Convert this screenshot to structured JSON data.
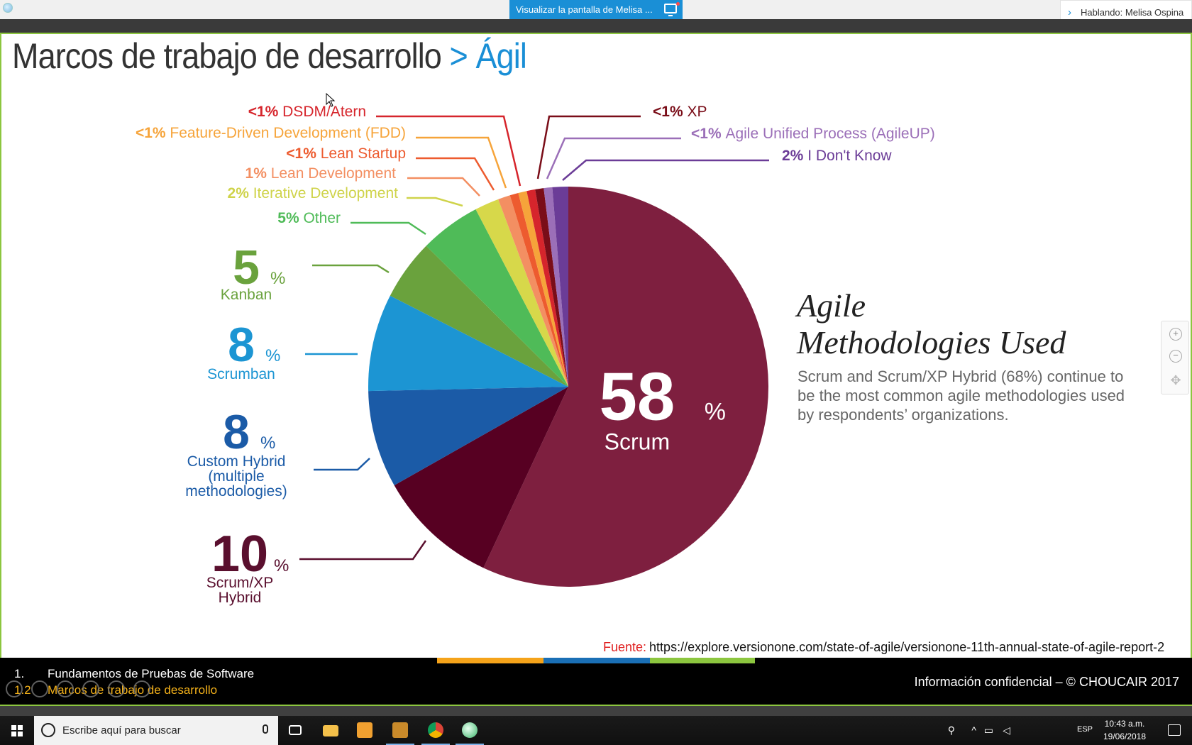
{
  "viewer": {
    "share_banner": "Visualizar la pantalla de Melisa ...",
    "speaking": "Hablando: Melisa Ospina"
  },
  "slide": {
    "title_main": "Marcos de trabajo de desarrollo",
    "title_accent": "> Ágil",
    "agile_title_line1": "Agile",
    "agile_title_line2": "Methodologies Used",
    "agile_desc": "Scrum and Scrum/XP Hybrid (68%) continue to be the most common agile methodologies used by respondents’ organizations.",
    "source_label": "Fuente:",
    "source_url": "https://explore.versionone.com/state-of-agile/versionone-11th-annual-state-of-agile-report-2"
  },
  "footer": {
    "num1": "1.",
    "line1": "Fundamentos de Pruebas de Software",
    "num2": "1.2",
    "line2": "Marcos de trabajo de desarrollo",
    "right": "Información confidencial – © CHOUCAIR 2017",
    "bar_colors": [
      "#f5a31a",
      "#1a6fb5",
      "#8cc63f"
    ]
  },
  "chart_data": {
    "type": "pie",
    "start": "12 o'clock, clockwise",
    "slices": [
      {
        "pct": "58",
        "label": "Scrum",
        "value": 58,
        "color": "#7e1f3f",
        "big": true
      },
      {
        "pct": "10",
        "label": "Scrum/XP Hybrid",
        "value": 10,
        "color": "#570022"
      },
      {
        "pct": "8",
        "label": "Custom Hybrid (multiple methodologies)",
        "value": 8,
        "color": "#1b5ba7"
      },
      {
        "pct": "8",
        "label": "Scrumban",
        "value": 8,
        "color": "#1c95d3"
      },
      {
        "pct": "5",
        "label": "Kanban",
        "value": 5,
        "color": "#6aa23d"
      },
      {
        "pct": "5%",
        "label": "Other",
        "value": 5,
        "color": "#4fbb58"
      },
      {
        "pct": "2%",
        "label": "Iterative Development",
        "value": 2,
        "color": "#d7d84a"
      },
      {
        "pct": "1%",
        "label": "Lean Development",
        "value": 1,
        "color": "#f38f62"
      },
      {
        "pct": "<1%",
        "label": "Lean Startup",
        "value": 0.7,
        "color": "#ed5b2f"
      },
      {
        "pct": "<1%",
        "label": "Feature-Driven Development (FDD)",
        "value": 0.7,
        "color": "#f6a43a"
      },
      {
        "pct": "<1%",
        "label": "DSDM/Atern",
        "value": 0.7,
        "color": "#d6252c"
      },
      {
        "pct": "<1%",
        "label": "XP",
        "value": 0.7,
        "color": "#7a0d18"
      },
      {
        "pct": "<1%",
        "label": "Agile Unified Process (AgileUP)",
        "value": 0.7,
        "color": "#9b6fb8"
      },
      {
        "pct": "2%",
        "label": "I Don't Know",
        "value": 1.3,
        "color": "#6b3c97"
      }
    ],
    "label_colors": {
      "Scrum": "#ffffff",
      "Scrum/XP Hybrid": "#5a0f2e",
      "Custom Hybrid (multiple methodologies)": "#1b5ba7",
      "Scrumban": "#1c95d3",
      "Kanban": "#6aa23d",
      "Other": "#4fbb58",
      "Iterative Development": "#cfd34a",
      "Lean Development": "#f38f62",
      "Lean Startup": "#ed5b2f",
      "Feature-Driven Development (FDD)": "#f6a43a",
      "DSDM/Atern": "#d6252c",
      "XP": "#7a0d18",
      "Agile Unified Process (AgileUP)": "#9b6fb8",
      "I Don't Know": "#6b3c97"
    }
  },
  "taskbar": {
    "search_placeholder": "Escribe aquí para buscar",
    "lang": "ESP",
    "time": "10:43 a.m.",
    "date": "19/06/2018"
  }
}
